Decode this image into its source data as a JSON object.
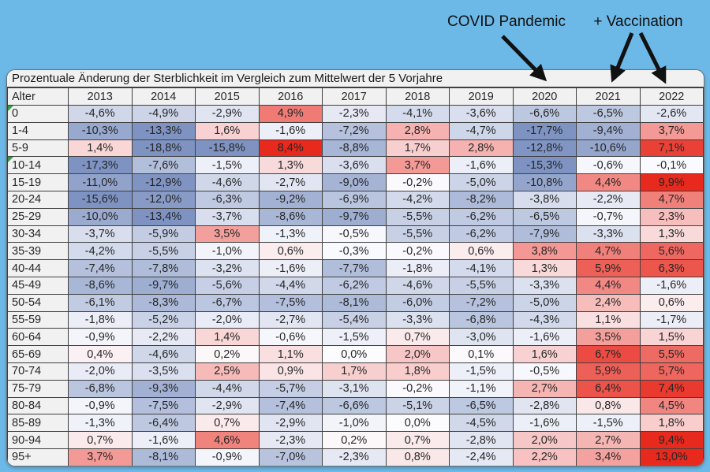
{
  "page": {
    "background_color": "#6CB9E8"
  },
  "annotations": {
    "covid_label": "COVID Pandemic",
    "vaccination_label": "+ Vaccination",
    "arrow_color": "#111111"
  },
  "chart_data": {
    "type": "heatmap",
    "title": "Prozentuale Änderung der Sterblichkeit im Vergleich zum Mittelwert der 5 Vorjahre",
    "row_label_header": "Alter",
    "columns": [
      "2013",
      "2014",
      "2015",
      "2016",
      "2017",
      "2018",
      "2019",
      "2020",
      "2021",
      "2022"
    ],
    "value_format": "german_percent_1dp",
    "rows": [
      {
        "label": "0",
        "flag": true,
        "values": [
          -4.6,
          -4.9,
          -2.9,
          4.9,
          -2.3,
          -4.1,
          -3.6,
          -6.6,
          -6.5,
          -2.6
        ]
      },
      {
        "label": "1-4",
        "flag": false,
        "values": [
          -10.3,
          -13.3,
          1.6,
          -1.6,
          -7.2,
          2.8,
          -4.7,
          -17.7,
          -9.4,
          3.7
        ]
      },
      {
        "label": "5-9",
        "flag": false,
        "values": [
          1.4,
          -18.8,
          -15.8,
          8.4,
          -8.8,
          1.7,
          2.8,
          -12.8,
          -10.6,
          7.1
        ]
      },
      {
        "label": "10-14",
        "flag": true,
        "values": [
          -17.3,
          -7.6,
          -1.5,
          1.3,
          -3.6,
          3.7,
          -1.6,
          -15.3,
          -0.6,
          -0.1
        ]
      },
      {
        "label": "15-19",
        "flag": false,
        "values": [
          -11.0,
          -12.9,
          -4.6,
          -2.7,
          -9.0,
          -0.2,
          -5.0,
          -10.8,
          4.4,
          9.9
        ]
      },
      {
        "label": "20-24",
        "flag": false,
        "values": [
          -15.6,
          -12.0,
          -6.3,
          -9.2,
          -6.9,
          -4.2,
          -8.2,
          -3.8,
          -2.2,
          4.7
        ]
      },
      {
        "label": "25-29",
        "flag": false,
        "values": [
          -10.0,
          -13.4,
          -3.7,
          -8.6,
          -9.7,
          -5.5,
          -6.2,
          -6.5,
          -0.7,
          2.3
        ]
      },
      {
        "label": "30-34",
        "flag": false,
        "values": [
          -3.7,
          -5.9,
          3.5,
          -1.3,
          -0.5,
          -5.5,
          -6.2,
          -7.9,
          -3.3,
          1.3
        ]
      },
      {
        "label": "35-39",
        "flag": false,
        "values": [
          -4.2,
          -5.5,
          -1.0,
          0.6,
          -0.3,
          -0.2,
          0.6,
          3.8,
          4.7,
          5.6
        ]
      },
      {
        "label": "40-44",
        "flag": false,
        "values": [
          -7.4,
          -7.8,
          -3.2,
          -1.6,
          -7.7,
          -1.8,
          -4.1,
          1.3,
          5.9,
          6.3
        ]
      },
      {
        "label": "45-49",
        "flag": false,
        "values": [
          -8.6,
          -9.7,
          -5.6,
          -4.4,
          -6.2,
          -4.6,
          -5.5,
          -3.3,
          4.4,
          -1.6
        ]
      },
      {
        "label": "50-54",
        "flag": false,
        "values": [
          -6.1,
          -8.3,
          -6.7,
          -7.5,
          -8.1,
          -6.0,
          -7.2,
          -5.0,
          2.4,
          0.6
        ]
      },
      {
        "label": "55-59",
        "flag": false,
        "values": [
          -1.8,
          -5.2,
          -2.0,
          -2.7,
          -5.4,
          -3.3,
          -6.8,
          -4.3,
          1.1,
          -1.7
        ]
      },
      {
        "label": "60-64",
        "flag": false,
        "values": [
          -0.9,
          -2.2,
          1.4,
          -0.6,
          -1.5,
          0.7,
          -3.0,
          -1.6,
          3.5,
          1.5
        ]
      },
      {
        "label": "65-69",
        "flag": false,
        "values": [
          0.4,
          -4.6,
          0.2,
          1.1,
          0.0,
          2.0,
          0.1,
          1.6,
          6.7,
          5.5
        ]
      },
      {
        "label": "70-74",
        "flag": false,
        "values": [
          -2.0,
          -3.5,
          2.5,
          0.9,
          1.7,
          1.8,
          -1.5,
          -0.5,
          5.9,
          5.7
        ]
      },
      {
        "label": "75-79",
        "flag": false,
        "values": [
          -6.8,
          -9.3,
          -4.4,
          -5.7,
          -3.1,
          -0.2,
          -1.1,
          2.7,
          6.4,
          7.4
        ]
      },
      {
        "label": "80-84",
        "flag": false,
        "values": [
          -0.9,
          -7.5,
          -2.9,
          -7.4,
          -6.6,
          -5.1,
          -6.5,
          -2.8,
          0.8,
          4.5
        ]
      },
      {
        "label": "85-89",
        "flag": false,
        "values": [
          -1.3,
          -6.4,
          0.7,
          -2.9,
          -1.0,
          0.0,
          -4.5,
          -1.6,
          -1.5,
          1.8
        ]
      },
      {
        "label": "90-94",
        "flag": false,
        "values": [
          0.7,
          -1.6,
          4.6,
          -2.3,
          0.2,
          0.7,
          -2.8,
          2.0,
          2.7,
          9.4
        ]
      },
      {
        "label": "95+",
        "flag": false,
        "values": [
          3.7,
          -8.1,
          -0.9,
          -7.0,
          -2.3,
          0.8,
          -2.4,
          2.2,
          3.4,
          13.0
        ]
      }
    ],
    "color_scale": {
      "zero": "#FCFCFF",
      "positive_max": "#E8291D",
      "negative_max": "#7E93C2",
      "positive_cap": 8,
      "negative_cap": 13,
      "excel_flag_green": "#2F9E41"
    },
    "legend_position": "none",
    "grid": true
  }
}
